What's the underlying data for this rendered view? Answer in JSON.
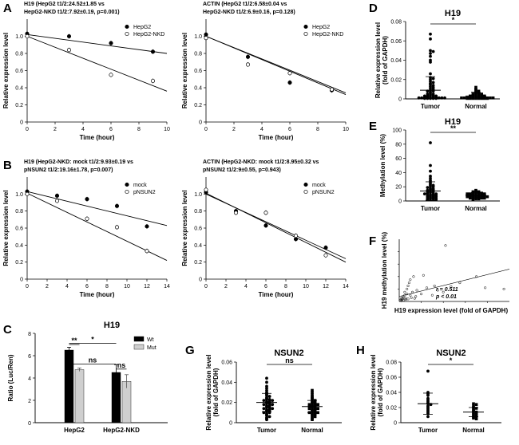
{
  "panels": {
    "A": {
      "letter": "A"
    },
    "B": {
      "letter": "B"
    },
    "C": {
      "letter": "C"
    },
    "D": {
      "letter": "D"
    },
    "E": {
      "letter": "E"
    },
    "F": {
      "letter": "F"
    },
    "G": {
      "letter": "G"
    },
    "H": {
      "letter": "H"
    }
  },
  "chart_data": [
    {
      "id": "A1",
      "type": "scatter",
      "title": [
        "H19 (HepG2 t1/2:24.52±1.85 vs",
        "HepG2-NKD t1/2:7.92±0.19, p=0.001)"
      ],
      "xlabel": "Time (hour)",
      "ylabel": "Relative expression level",
      "xlim": [
        0,
        10
      ],
      "ylim": [
        0,
        1.2
      ],
      "xticks": [
        0,
        2,
        4,
        6,
        8,
        10
      ],
      "yticks": [
        0,
        0.2,
        0.4,
        0.6,
        0.8,
        1.0
      ],
      "legend": "top-right",
      "series": [
        {
          "name": "HepG2",
          "marker": "filled",
          "x": [
            0,
            3,
            6,
            9
          ],
          "y": [
            1.03,
            1.0,
            0.92,
            0.82
          ],
          "fit": [
            [
              0,
              1.02
            ],
            [
              10,
              0.8
            ]
          ]
        },
        {
          "name": "HepG2-NKD",
          "marker": "open",
          "x": [
            0,
            3,
            6,
            9
          ],
          "y": [
            1.0,
            0.84,
            0.55,
            0.48
          ],
          "fit": [
            [
              0,
              1.0
            ],
            [
              10,
              0.36
            ]
          ]
        }
      ]
    },
    {
      "id": "A2",
      "type": "scatter",
      "title": [
        "ACTIN (HepG2 t1/2:6.58±0.04 vs",
        "HepG2-NKD t1/2:6.9±0.16, p=0.128)"
      ],
      "xlabel": "Time (hour)",
      "ylabel": "Relative expression level",
      "xlim": [
        0,
        10
      ],
      "ylim": [
        0,
        1.2
      ],
      "xticks": [
        0,
        2,
        4,
        6,
        8,
        10
      ],
      "yticks": [
        0,
        0.2,
        0.4,
        0.6,
        0.8,
        1.0
      ],
      "legend": "top-right",
      "series": [
        {
          "name": "HepG2",
          "marker": "filled",
          "x": [
            0,
            3,
            6,
            9
          ],
          "y": [
            1.02,
            0.76,
            0.46,
            0.37
          ],
          "fit": [
            [
              0,
              1.0
            ],
            [
              10,
              0.32
            ]
          ]
        },
        {
          "name": "HepG2-NKD",
          "marker": "open",
          "x": [
            0,
            3,
            6,
            9
          ],
          "y": [
            0.98,
            0.67,
            0.57,
            0.38
          ],
          "fit": [
            [
              0,
              1.0
            ],
            [
              10,
              0.34
            ]
          ]
        }
      ]
    },
    {
      "id": "B1",
      "type": "scatter",
      "title": [
        "H19 (HepG2-NKD: mock t1/2:9.93±0.19 vs",
        "pNSUN2 t1/2:19.16±1.78, p=0.007)"
      ],
      "xlabel": "Time (hour)",
      "ylabel": "Relative expression level",
      "xlim": [
        0,
        14
      ],
      "ylim": [
        0,
        1.2
      ],
      "xticks": [
        0,
        2,
        4,
        6,
        8,
        10,
        12,
        14
      ],
      "yticks": [
        0,
        0.2,
        0.4,
        0.6,
        0.8,
        1.0
      ],
      "legend": "top-right",
      "series": [
        {
          "name": "mock",
          "marker": "filled",
          "x": [
            0,
            3,
            6,
            9,
            12
          ],
          "y": [
            1.03,
            0.98,
            0.94,
            0.86,
            0.62
          ],
          "fit": [
            [
              0,
              1.03
            ],
            [
              14,
              0.63
            ]
          ]
        },
        {
          "name": "pNSUN2",
          "marker": "open",
          "x": [
            0,
            3,
            6,
            9,
            12
          ],
          "y": [
            1.0,
            0.92,
            0.71,
            0.61,
            0.33
          ],
          "fit": [
            [
              0,
              1.01
            ],
            [
              14,
              0.22
            ]
          ]
        }
      ]
    },
    {
      "id": "B2",
      "type": "scatter",
      "title": [
        "ACTIN (HepG2-NKD: mock t1/2:8.95±0.32 vs",
        "pNSUN2 t1/2:9±0.55, p=0.943)"
      ],
      "xlabel": "Time (hour)",
      "ylabel": "Relative expression level",
      "xlim": [
        0,
        14
      ],
      "ylim": [
        0,
        1.2
      ],
      "xticks": [
        0,
        2,
        4,
        6,
        8,
        10,
        12,
        14
      ],
      "yticks": [
        0,
        0.2,
        0.4,
        0.6,
        0.8,
        1.0
      ],
      "legend": "top-right",
      "series": [
        {
          "name": "mock",
          "marker": "filled",
          "x": [
            0,
            3,
            6,
            9,
            12
          ],
          "y": [
            1.02,
            0.8,
            0.63,
            0.47,
            0.37
          ],
          "fit": [
            [
              0,
              1.0
            ],
            [
              14,
              0.24
            ]
          ]
        },
        {
          "name": "pNSUN2",
          "marker": "open",
          "x": [
            0,
            3,
            6,
            9,
            12
          ],
          "y": [
            1.05,
            0.78,
            0.78,
            0.51,
            0.28
          ],
          "fit": [
            [
              0,
              1.01
            ],
            [
              14,
              0.2
            ]
          ]
        }
      ]
    },
    {
      "id": "C",
      "type": "bar",
      "title": "H19",
      "ylabel": "Ratio (Luc/Ren)",
      "ylim": [
        0,
        8
      ],
      "yticks": [
        0,
        2,
        4,
        6,
        8
      ],
      "categories": [
        "HepG2",
        "HepG2-NKD"
      ],
      "legend": "top-right",
      "series": [
        {
          "name": "Wt",
          "color": "#000000",
          "values": [
            6.5,
            4.5
          ],
          "errors": [
            0.25,
            0.7
          ]
        },
        {
          "name": "Mut",
          "color": "#cfcfcf",
          "values": [
            4.75,
            3.7
          ],
          "errors": [
            0.15,
            0.6
          ]
        }
      ],
      "annotations": [
        {
          "text": "**",
          "between": [
            "HepG2 Wt",
            "HepG2 Mut"
          ],
          "level": 7.0
        },
        {
          "text": "*",
          "between": [
            "HepG2 Wt",
            "HepG2-NKD Wt"
          ],
          "level": 7.1
        },
        {
          "text": "ns",
          "between": [
            "HepG2 Wt",
            "HepG2-NKD Wt"
          ],
          "level": 5.25
        },
        {
          "text": "ns",
          "between": [
            "HepG2-NKD Wt",
            "HepG2-NKD Mut"
          ],
          "level": 4.8
        }
      ]
    },
    {
      "id": "D",
      "type": "scatter",
      "title": "H19",
      "ylabel": "Relative expression level (fold of GAPDH)",
      "ylim": [
        0,
        0.08
      ],
      "yticks": [
        0,
        0.02,
        0.04,
        0.06,
        0.08
      ],
      "categories": [
        "Tumor",
        "Normal"
      ],
      "significance": "*",
      "groups": [
        {
          "name": "Tumor",
          "marker": "filled-circle",
          "mean": 0.009,
          "sd": 0.014,
          "values": [
            0.067,
            0.062,
            0.05,
            0.049,
            0.047,
            0.044,
            0.04,
            0.038,
            0.026,
            0.022,
            0.021,
            0.02,
            0.018,
            0.017,
            0.016,
            0.015,
            0.014,
            0.013,
            0.012,
            0.011,
            0.01,
            0.009,
            0.008,
            0.008,
            0.007,
            0.006,
            0.005,
            0.005,
            0.004,
            0.004,
            0.003,
            0.003,
            0.003,
            0.002,
            0.002,
            0.002,
            0.002,
            0.001,
            0.001,
            0.001,
            0.001,
            0.001,
            0.001,
            0.0005,
            0.0005,
            0.0005,
            0.0005,
            0.0005
          ]
        },
        {
          "name": "Normal",
          "marker": "filled-square",
          "mean": 0.003,
          "sd": 0.004,
          "values": [
            0.012,
            0.01,
            0.009,
            0.008,
            0.007,
            0.006,
            0.006,
            0.005,
            0.005,
            0.004,
            0.004,
            0.004,
            0.003,
            0.003,
            0.003,
            0.002,
            0.002,
            0.002,
            0.002,
            0.002,
            0.001,
            0.001,
            0.001,
            0.001,
            0.001,
            0.001,
            0.001,
            0.0005,
            0.0005,
            0.0005,
            0.0005,
            0.0005,
            0.0005,
            0.0005,
            0.0005
          ]
        }
      ]
    },
    {
      "id": "E",
      "type": "scatter",
      "title": "H19",
      "ylabel": "Methylation level (%)",
      "ylim": [
        0,
        100
      ],
      "yticks": [
        0,
        20,
        40,
        60,
        80,
        100
      ],
      "categories": [
        "Tumor",
        "Normal"
      ],
      "significance": "**",
      "groups": [
        {
          "name": "Tumor",
          "marker": "filled-circle",
          "mean": 14,
          "sd": 13,
          "values": [
            82,
            50,
            42,
            35,
            32,
            29,
            27,
            25,
            23,
            22,
            21,
            20,
            19,
            18,
            17,
            16,
            16,
            15,
            14,
            14,
            13,
            12,
            12,
            11,
            10,
            10,
            9,
            9,
            8,
            8,
            7,
            7,
            6,
            6,
            5,
            5,
            4,
            4,
            3,
            3,
            2,
            2
          ]
        },
        {
          "name": "Normal",
          "marker": "filled-square",
          "mean": 8,
          "sd": 4,
          "values": [
            15,
            14,
            13,
            13,
            12,
            12,
            11,
            11,
            10,
            10,
            10,
            9,
            9,
            9,
            8,
            8,
            8,
            8,
            7,
            7,
            7,
            7,
            6,
            6,
            6,
            6,
            5,
            5,
            5,
            4,
            4,
            4,
            3,
            3,
            2
          ]
        }
      ]
    },
    {
      "id": "F",
      "type": "scatter",
      "ylabel": "H19 methylation level (%)",
      "xlabel": "H19 expression level (fold of GAPDH)",
      "annotations": [
        "r = 0.511",
        "p < 0.01"
      ],
      "fit": [
        [
          0,
          0.08
        ],
        [
          1,
          0.52
        ]
      ],
      "points": [
        [
          0.01,
          0.02
        ],
        [
          0.02,
          0.03
        ],
        [
          0.02,
          0.05
        ],
        [
          0.03,
          0.04
        ],
        [
          0.03,
          0.07
        ],
        [
          0.04,
          0.06
        ],
        [
          0.05,
          0.1
        ],
        [
          0.05,
          0.15
        ],
        [
          0.06,
          0.05
        ],
        [
          0.07,
          0.2
        ],
        [
          0.07,
          0.12
        ],
        [
          0.08,
          0.25
        ],
        [
          0.09,
          0.3
        ],
        [
          0.1,
          0.1
        ],
        [
          0.1,
          0.35
        ],
        [
          0.12,
          0.15
        ],
        [
          0.13,
          0.4
        ],
        [
          0.15,
          0.08
        ],
        [
          0.16,
          0.18
        ],
        [
          0.2,
          0.12
        ],
        [
          0.22,
          0.42
        ],
        [
          0.25,
          0.22
        ],
        [
          0.3,
          0.1
        ],
        [
          0.32,
          0.25
        ],
        [
          0.35,
          0.18
        ],
        [
          0.4,
          0.15
        ],
        [
          0.42,
          0.9
        ],
        [
          0.47,
          0.24
        ],
        [
          0.55,
          0.3
        ],
        [
          0.7,
          0.4
        ],
        [
          0.78,
          0.22
        ],
        [
          0.95,
          0.2
        ],
        [
          0.02,
          0.01
        ],
        [
          0.04,
          0.02
        ],
        [
          0.06,
          0.03
        ],
        [
          0.08,
          0.04
        ],
        [
          0.11,
          0.06
        ],
        [
          0.14,
          0.05
        ]
      ]
    },
    {
      "id": "G",
      "type": "scatter",
      "title": "NSUN2",
      "ylabel": "Relative expression level (fold of GAPDH)",
      "ylim": [
        0,
        0.06
      ],
      "yticks": [
        0,
        0.02,
        0.04,
        0.06
      ],
      "categories": [
        "Tumor",
        "Normal"
      ],
      "significance": "ns",
      "groups": [
        {
          "name": "Tumor",
          "marker": "filled-circle",
          "mean": 0.02,
          "sd": 0.009,
          "values": [
            0.044,
            0.04,
            0.036,
            0.034,
            0.032,
            0.03,
            0.029,
            0.028,
            0.027,
            0.026,
            0.025,
            0.024,
            0.023,
            0.023,
            0.022,
            0.022,
            0.021,
            0.021,
            0.02,
            0.02,
            0.019,
            0.019,
            0.018,
            0.018,
            0.017,
            0.017,
            0.016,
            0.016,
            0.015,
            0.015,
            0.014,
            0.014,
            0.013,
            0.013,
            0.012,
            0.012,
            0.011,
            0.01,
            0.01,
            0.009,
            0.008,
            0.007,
            0.006,
            0.005,
            0.004,
            0.003
          ]
        },
        {
          "name": "Normal",
          "marker": "filled-square",
          "mean": 0.016,
          "sd": 0.006,
          "values": [
            0.032,
            0.03,
            0.028,
            0.026,
            0.025,
            0.024,
            0.023,
            0.022,
            0.021,
            0.02,
            0.02,
            0.019,
            0.019,
            0.018,
            0.018,
            0.017,
            0.017,
            0.016,
            0.016,
            0.016,
            0.015,
            0.015,
            0.014,
            0.014,
            0.013,
            0.013,
            0.012,
            0.012,
            0.011,
            0.011,
            0.01,
            0.01,
            0.009,
            0.009,
            0.008,
            0.008,
            0.007,
            0.006,
            0.005,
            0.004,
            0.003
          ]
        }
      ]
    },
    {
      "id": "H",
      "type": "scatter",
      "title": "NSUN2",
      "ylabel": "Relative expression level (fold of GAPDH)",
      "ylim": [
        0,
        0.08
      ],
      "yticks": [
        0,
        0.02,
        0.04,
        0.06,
        0.08
      ],
      "categories": [
        "Tumor",
        "Normal"
      ],
      "significance": "*",
      "groups": [
        {
          "name": "Tumor",
          "marker": "filled-circle",
          "mean": 0.025,
          "sd": 0.014,
          "values": [
            0.068,
            0.04,
            0.038,
            0.036,
            0.032,
            0.03,
            0.028,
            0.026,
            0.025,
            0.024,
            0.022,
            0.02,
            0.018,
            0.016,
            0.014,
            0.012,
            0.008
          ]
        },
        {
          "name": "Normal",
          "marker": "filled-square",
          "mean": 0.014,
          "sd": 0.006,
          "values": [
            0.025,
            0.024,
            0.022,
            0.02,
            0.019,
            0.018,
            0.016,
            0.015,
            0.014,
            0.013,
            0.012,
            0.011,
            0.01,
            0.009,
            0.008,
            0.007,
            0.006,
            0.005
          ]
        }
      ]
    }
  ]
}
